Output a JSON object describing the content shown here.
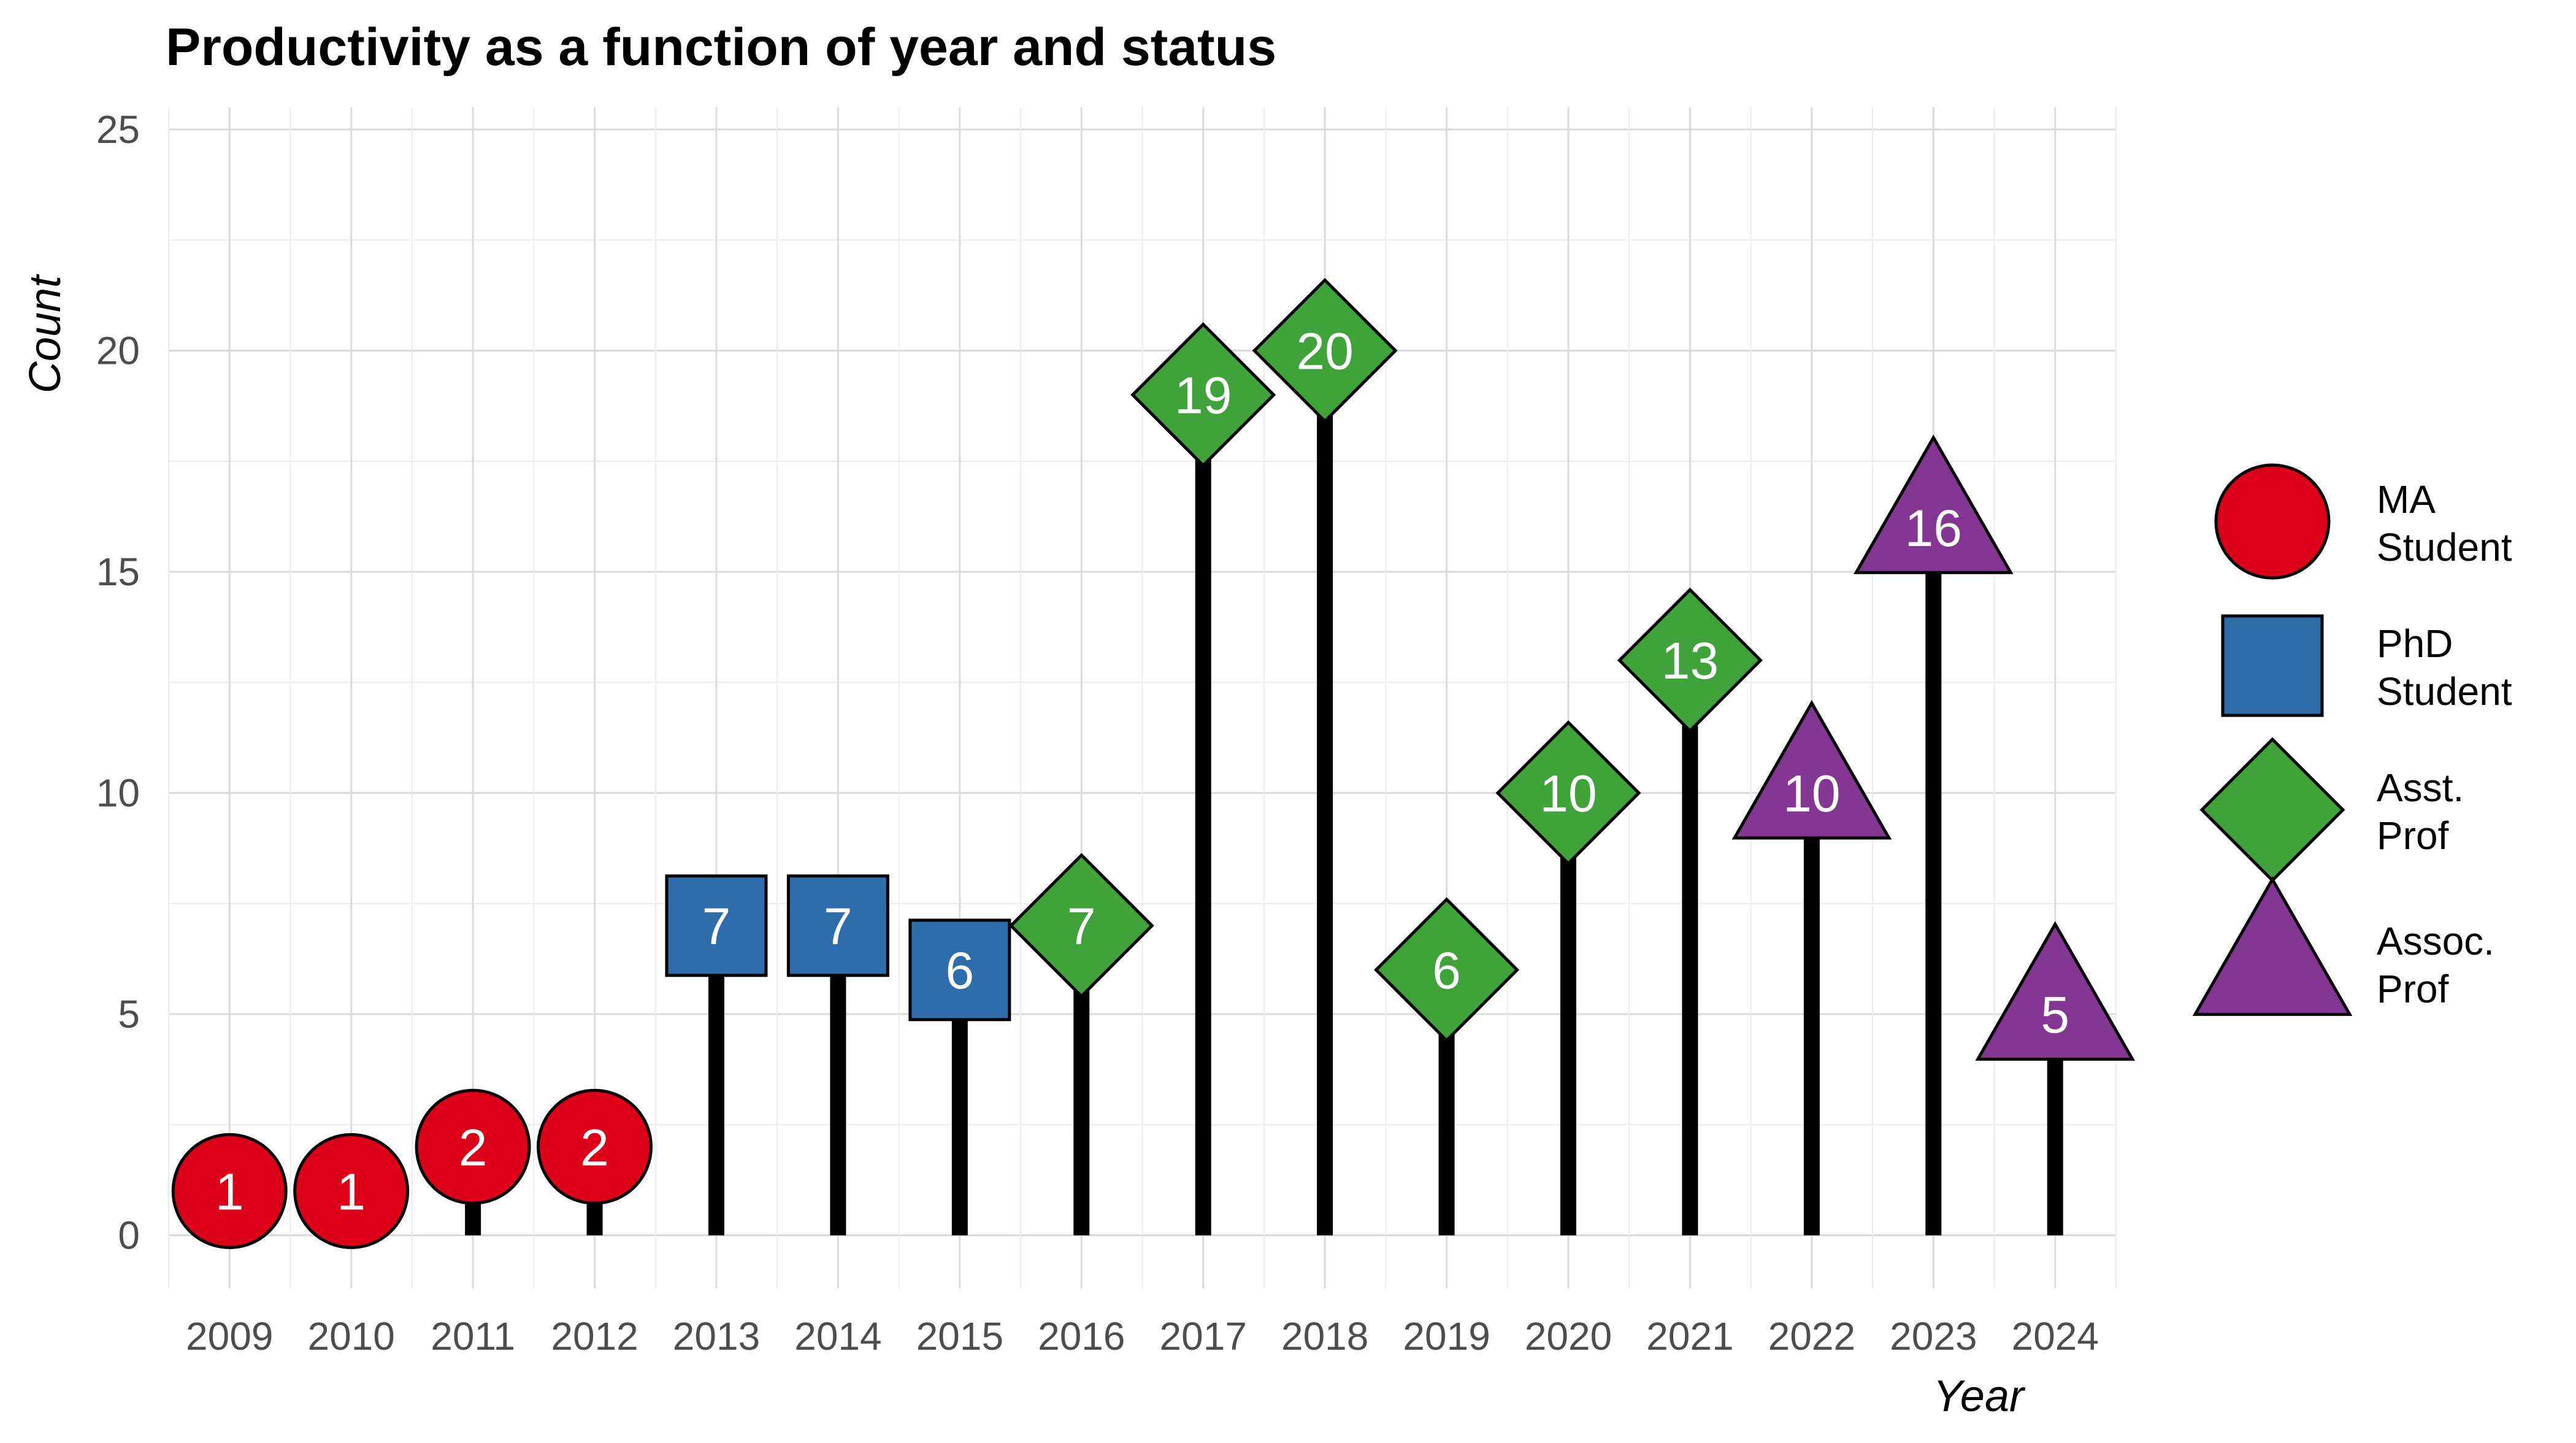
{
  "chart_data": {
    "type": "lollipop",
    "title": "Productivity as a function of year and status",
    "xlabel": "Year",
    "ylabel": "Count",
    "ylim": [
      -1.2,
      25.5
    ],
    "yticks": [
      0,
      5,
      10,
      15,
      20,
      25
    ],
    "grid": true,
    "legend_position": "right",
    "x": [
      2009,
      2010,
      2011,
      2012,
      2013,
      2014,
      2015,
      2016,
      2017,
      2018,
      2019,
      2020,
      2021,
      2022,
      2023,
      2024
    ],
    "values": [
      1,
      1,
      2,
      2,
      7,
      7,
      6,
      7,
      19,
      20,
      6,
      10,
      13,
      10,
      16,
      5
    ],
    "status": [
      "MA Student",
      "MA Student",
      "MA Student",
      "MA Student",
      "PhD Student",
      "PhD Student",
      "PhD Student",
      "Asst. Prof",
      "Asst. Prof",
      "Asst. Prof",
      "Asst. Prof",
      "Asst. Prof",
      "Asst. Prof",
      "Assoc. Prof",
      "Assoc. Prof",
      "Assoc. Prof"
    ],
    "legend": [
      {
        "name": "MA Student",
        "lines": [
          "MA",
          "Student"
        ],
        "shape": "circle",
        "color": "#DC0019"
      },
      {
        "name": "PhD Student",
        "lines": [
          "PhD",
          "Student"
        ],
        "shape": "square",
        "color": "#2E6CAB"
      },
      {
        "name": "Asst. Prof",
        "lines": [
          "Asst.",
          "Prof"
        ],
        "shape": "diamond",
        "color": "#3FA23B"
      },
      {
        "name": "Assoc. Prof",
        "lines": [
          "Assoc.",
          "Prof"
        ],
        "shape": "triangle",
        "color": "#833792"
      }
    ]
  }
}
